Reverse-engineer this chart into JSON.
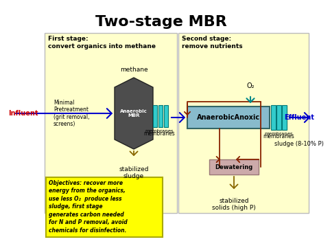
{
  "title": "Two-stage MBR",
  "title_fontsize": 16,
  "bg_color": "#ffffff",
  "stage1_bg": "#ffffcc",
  "stage2_bg": "#ffffcc",
  "objectives_bg": "#ffff00",
  "stage1_label": "First stage:\nconvert organics into methane",
  "stage2_label": "Second stage:\nremove nutrients",
  "influent_label": "Influent",
  "effluent_label": "Effluent",
  "methane_label": "methane",
  "membranes_label1": "membranes",
  "membranes_label2": "membranes",
  "stab_sludge_label": "stabilized\nsludge",
  "sludge_pct_label": "sludge (8-10% P)",
  "stab_solids_label": "stabilized\nsolids (high P)",
  "dewatering_label": "Dewatering",
  "mbr_label": "Anaerobic\nMBR",
  "anoxic_label": "AnaerobicAnoxic",
  "pretreat_label": "Minimal\nPretreatment\n(grit removal,\nscreens)",
  "o2_label": "O₂",
  "objectives_text": "Objectives: recover more\nenergy from the organics,\nuse less O₂  produce less\nsludge, first stage\ngenerates carbon needed\nfor N and P removal, avoid\nchemicals for disinfection.",
  "anaerobic_color": "#4d4d4d",
  "anoxic_box_color": "#88bbcc",
  "membrane_color": "#33cccc",
  "dewatering_color": "#ccaaaa",
  "arrow_blue": "#0000cc",
  "arrow_brown": "#882200",
  "arrow_teal": "#008888",
  "influent_color": "#cc0000",
  "effluent_color": "#0000cc",
  "stage_border": "#bbbbbb"
}
